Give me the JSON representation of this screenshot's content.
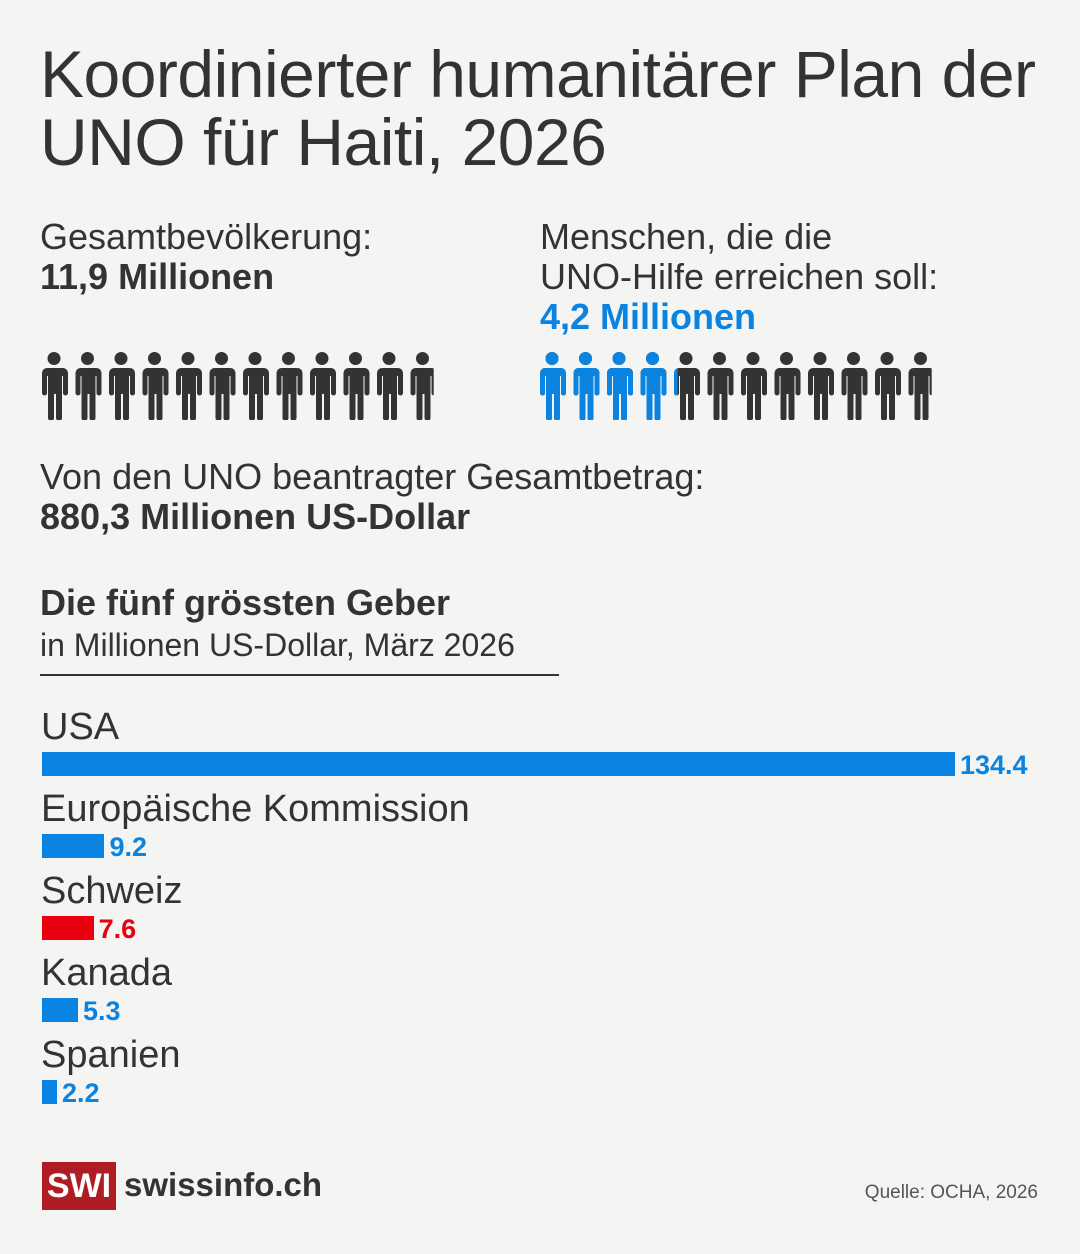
{
  "title": "Koordinierter humanitärer Plan der UNO für Haiti, 2026",
  "population": {
    "label": "Gesamtbevölkerung:",
    "value": "11,9 Millionen",
    "count": 11.9
  },
  "target": {
    "label_line1": "Menschen, die die",
    "label_line2": "UNO-Hilfe erreichen soll:",
    "value": "4,2 Millionen",
    "count": 4.2,
    "total": 11.9
  },
  "funding": {
    "label": "Von den UNO beantragter Gesamtbetrag:",
    "value": "880,3 Millionen US-Dollar"
  },
  "colors": {
    "blue": "#0a84e0",
    "red": "#e8000e",
    "dark": "#333333",
    "logo_red": "#b01c24"
  },
  "chart_data": {
    "type": "bar",
    "orientation": "horizontal",
    "title": "Die fünf grössten Geber",
    "subtitle": "in Millionen US-Dollar, März 2026",
    "categories": [
      "USA",
      "Europäische Kommission",
      "Schweiz",
      "Kanada",
      "Spanien"
    ],
    "values": [
      134.4,
      9.2,
      7.6,
      5.3,
      2.2
    ],
    "value_labels": [
      "134.4",
      "9.2",
      "7.6",
      "5.3",
      "2.2"
    ],
    "bar_colors": [
      "#0a84e0",
      "#0a84e0",
      "#e8000e",
      "#0a84e0",
      "#0a84e0"
    ],
    "grid": false
  },
  "footer": {
    "logo_mark": "SWI",
    "logo_text": "swissinfo.ch",
    "source": "Quelle: OCHA, 2026"
  }
}
